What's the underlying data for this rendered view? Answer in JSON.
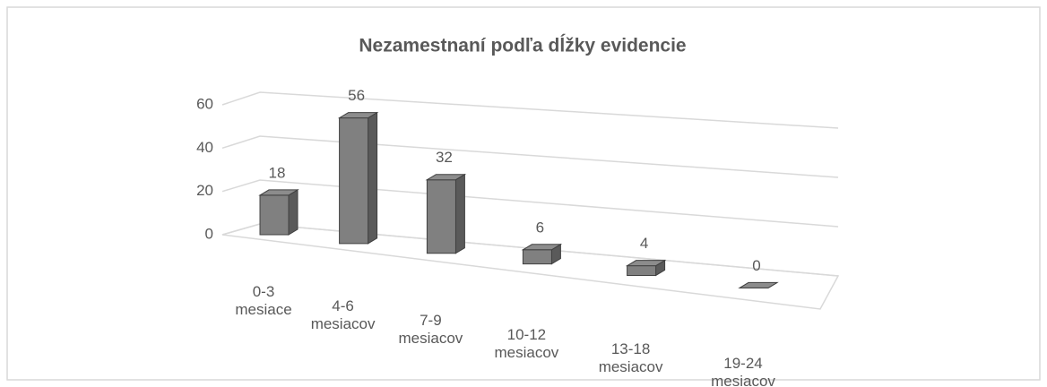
{
  "chart_data": {
    "type": "bar3d",
    "title": "Nezamestnaní podľa dĺžky evidencie",
    "categories": [
      "0-3 mesiace",
      "4-6 mesiacov",
      "7-9 mesiacov",
      "10-12 mesiacov",
      "13-18 mesiacov",
      "19-24 mesiacov"
    ],
    "values": [
      18,
      56,
      32,
      6,
      4,
      0
    ],
    "color": "#808080",
    "ylim": [
      0,
      60
    ],
    "yticks": [
      0,
      20,
      40,
      60
    ],
    "grid": true
  }
}
